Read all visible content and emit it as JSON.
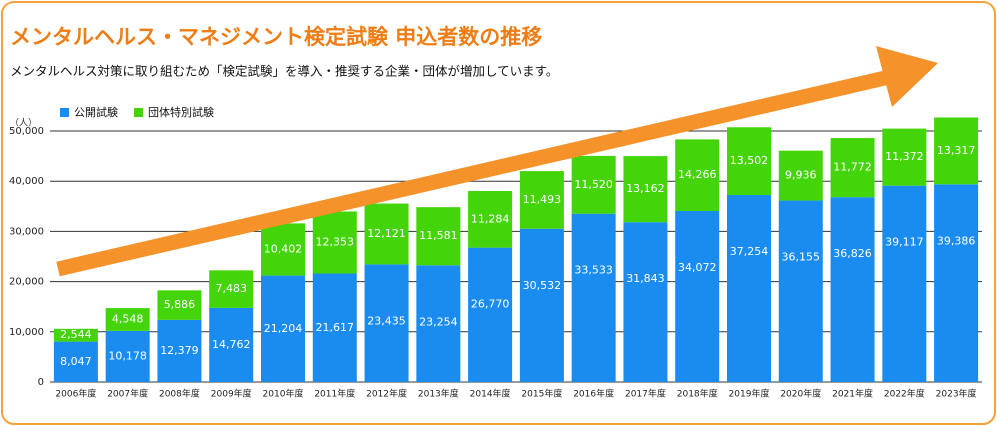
{
  "chart_data": {
    "type": "stacked_bar",
    "title": "メンタルヘルス・マネジメント検定試験 申込者数の推移",
    "subtitle": "メンタルヘルス対策に取り組むため「検定試験」を導入・推奨する企業・団体が増加しています。",
    "y_axis_unit": "（人）",
    "categories": [
      "2006年度",
      "2007年度",
      "2008年度",
      "2009年度",
      "2010年度",
      "2011年度",
      "2012年度",
      "2013年度",
      "2014年度",
      "2015年度",
      "2016年度",
      "2017年度",
      "2018年度",
      "2019年度",
      "2020年度",
      "2021年度",
      "2022年度",
      "2023年度"
    ],
    "series": [
      {
        "name": "公開試験",
        "color": "#1a8cf0",
        "values": [
          8047,
          10178,
          12379,
          14762,
          21204,
          21617,
          23435,
          23254,
          26770,
          30532,
          33533,
          31843,
          34072,
          37254,
          36155,
          36826,
          39117,
          39386
        ],
        "value_labels": [
          "8,047",
          "10,178",
          "12,379",
          "14,762",
          "21,204",
          "21,617",
          "23,435",
          "23,254",
          "26,770",
          "30,532",
          "33,533",
          "31,843",
          "34,072",
          "37,254",
          "36,155",
          "36,826",
          "39,117",
          "39,386"
        ]
      },
      {
        "name": "団体特別試験",
        "color": "#44d40a",
        "values": [
          2544,
          4548,
          5886,
          7483,
          10402,
          12353,
          12121,
          11581,
          11284,
          11493,
          11520,
          13162,
          14266,
          13502,
          9936,
          11772,
          11372,
          13317
        ],
        "value_labels": [
          "2,544",
          "4,548",
          "5,886",
          "7,483",
          "10,402",
          "12,353",
          "12,121",
          "11,581",
          "11,284",
          "11,493",
          "11,520",
          "13,162",
          "14,266",
          "13,502",
          "9,936",
          "11,772",
          "11,372",
          "13,317"
        ]
      }
    ],
    "ylim": [
      0,
      53000
    ],
    "yticks": [
      0,
      {
        "value": 10000,
        "label": "10,000"
      },
      {
        "value": 20000,
        "label": "20,000"
      },
      {
        "value": 30000,
        "label": "30,000"
      },
      {
        "value": 40000,
        "label": "40,000"
      },
      {
        "value": 50000,
        "label": "50,000"
      }
    ],
    "grid": true
  }
}
